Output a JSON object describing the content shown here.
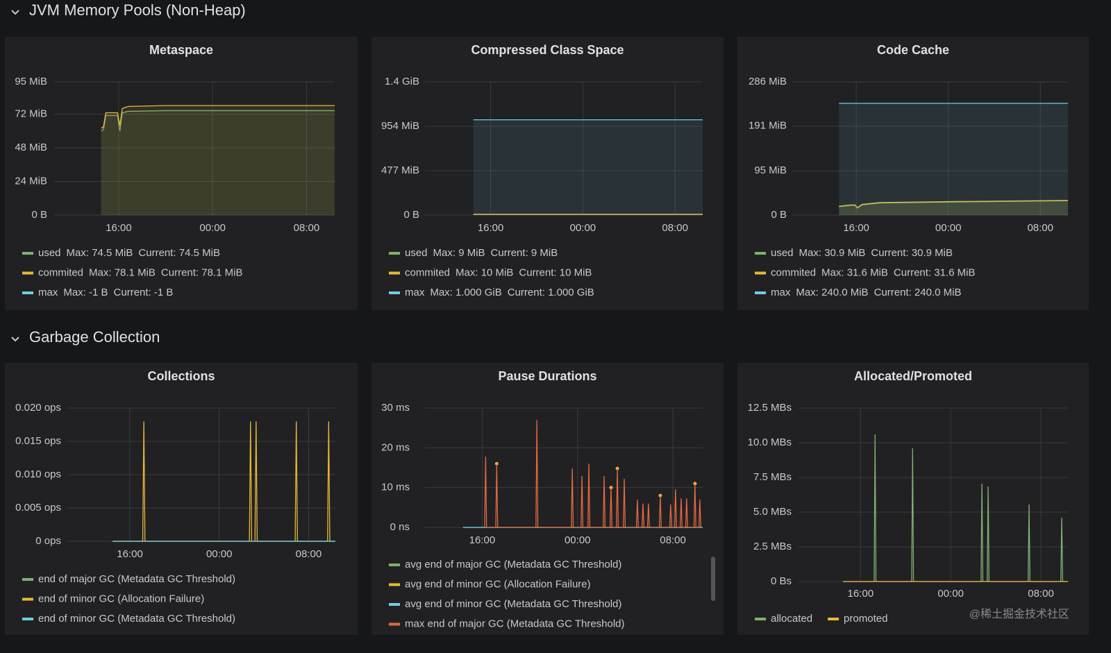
{
  "sections": [
    {
      "title": "JVM Memory Pools (Non-Heap)"
    },
    {
      "title": "Garbage Collection"
    }
  ],
  "watermark": "@稀土掘金技术社区",
  "chart_data": [
    {
      "type": "line",
      "title": "Metaspace",
      "fill": true,
      "grid": true,
      "xlim": [
        10.5,
        34.4
      ],
      "xticks": [
        {
          "value": 16,
          "label": "16:00"
        },
        {
          "value": 24,
          "label": "00:00"
        },
        {
          "value": 32,
          "label": "08:00"
        }
      ],
      "ylim": [
        0,
        95
      ],
      "yticks": [
        {
          "value": 0,
          "label": "0 B"
        },
        {
          "value": 24,
          "label": "24 MiB"
        },
        {
          "value": 48,
          "label": "48 MiB"
        },
        {
          "value": 72,
          "label": "72 MiB"
        },
        {
          "value": 95,
          "label": "95 MiB"
        }
      ],
      "x": [
        14.5,
        14.7,
        14.9,
        15.9,
        16.1,
        16.3,
        16.8,
        20,
        34.4
      ],
      "series": [
        {
          "name": "used",
          "color": "#7eb26d",
          "legend_max": "Max: 74.5 MiB",
          "legend_current": "Current: 74.5 MiB",
          "values": [
            60,
            61,
            71,
            71,
            60,
            73,
            74,
            74.5,
            74.5
          ]
        },
        {
          "name": "commited",
          "color": "#eab839",
          "legend_max": "Max: 78.1 MiB",
          "legend_current": "Current: 78.1 MiB",
          "values": [
            62,
            63,
            73,
            73,
            64,
            76,
            77.5,
            78.1,
            78.1
          ]
        },
        {
          "name": "max",
          "color": "#6ed0e0",
          "legend_max": "Max: -1 B",
          "legend_current": "Current: -1 B",
          "values": [
            null,
            null,
            null,
            null,
            null,
            null,
            null,
            null,
            null
          ]
        }
      ]
    },
    {
      "type": "line",
      "title": "Compressed Class Space",
      "fill": true,
      "grid": true,
      "xlim": [
        10.3,
        34.4
      ],
      "xticks": [
        {
          "value": 16,
          "label": "16:00"
        },
        {
          "value": 24,
          "label": "00:00"
        },
        {
          "value": 32,
          "label": "08:00"
        }
      ],
      "ylim": [
        0,
        1431
      ],
      "yticks": [
        {
          "value": 0,
          "label": "0 B"
        },
        {
          "value": 477,
          "label": "477 MiB"
        },
        {
          "value": 954,
          "label": "954 MiB"
        },
        {
          "value": 1431,
          "label": "1.4 GiB"
        }
      ],
      "x": [
        14.5,
        34.4
      ],
      "series": [
        {
          "name": "used",
          "color": "#7eb26d",
          "legend_max": "Max: 9 MiB",
          "legend_current": "Current: 9 MiB",
          "values": [
            9,
            9
          ]
        },
        {
          "name": "commited",
          "color": "#eab839",
          "legend_max": "Max: 10 MiB",
          "legend_current": "Current: 10 MiB",
          "values": [
            10,
            10
          ]
        },
        {
          "name": "max",
          "color": "#6ed0e0",
          "legend_max": "Max: 1.000 GiB",
          "legend_current": "Current: 1.000 GiB",
          "values": [
            1024,
            1024
          ]
        }
      ]
    },
    {
      "type": "line",
      "title": "Code Cache",
      "fill": true,
      "grid": true,
      "xlim": [
        10.44,
        34.4
      ],
      "xticks": [
        {
          "value": 16,
          "label": "16:00"
        },
        {
          "value": 24,
          "label": "00:00"
        },
        {
          "value": 32,
          "label": "08:00"
        }
      ],
      "ylim": [
        0,
        286
      ],
      "yticks": [
        {
          "value": 0,
          "label": "0 B"
        },
        {
          "value": 95,
          "label": "95 MiB"
        },
        {
          "value": 191,
          "label": "191 MiB"
        },
        {
          "value": 286,
          "label": "286 MiB"
        }
      ],
      "x": [
        14.5,
        15.5,
        15.9,
        16.1,
        16.5,
        18,
        24,
        34.4
      ],
      "series": [
        {
          "name": "used",
          "color": "#7eb26d",
          "legend_max": "Max: 30.9 MiB",
          "legend_current": "Current: 30.9 MiB",
          "values": [
            18,
            21,
            21,
            15,
            22,
            26,
            28,
            30.9
          ]
        },
        {
          "name": "commited",
          "color": "#eab839",
          "legend_max": "Max: 31.6 MiB",
          "legend_current": "Current: 31.6 MiB",
          "values": [
            19,
            22,
            22,
            16,
            23,
            27,
            29,
            31.6
          ]
        },
        {
          "name": "max",
          "color": "#6ed0e0",
          "legend_max": "Max: 240.0 MiB",
          "legend_current": "Current: 240.0 MiB",
          "values": [
            240,
            240,
            240,
            240,
            240,
            240,
            240,
            240
          ]
        }
      ]
    },
    {
      "type": "line",
      "title": "Collections",
      "fill": false,
      "grid": true,
      "xlim": [
        10.4,
        34.4
      ],
      "xticks": [
        {
          "value": 16,
          "label": "16:00"
        },
        {
          "value": 24,
          "label": "00:00"
        },
        {
          "value": 32,
          "label": "08:00"
        }
      ],
      "ylim": [
        0,
        0.02
      ],
      "yticks": [
        {
          "value": 0,
          "label": "0 ops"
        },
        {
          "value": 0.005,
          "label": "0.005 ops"
        },
        {
          "value": 0.01,
          "label": "0.010 ops"
        },
        {
          "value": 0.015,
          "label": "0.015 ops"
        },
        {
          "value": 0.02,
          "label": "0.020 ops"
        }
      ],
      "series": [
        {
          "name": "end of major GC (Metadata GC Threshold)",
          "color": "#7eb26d",
          "x": [
            14.45,
            34.4
          ],
          "values": [
            0,
            0
          ]
        },
        {
          "name": "end of minor GC (Allocation Failure)",
          "color": "#eab839",
          "x": [
            14.45,
            17.15,
            17.25,
            17.35,
            26.7,
            26.8,
            26.9,
            27.2,
            27.3,
            27.4,
            30.8,
            30.9,
            31.0,
            33.7,
            33.8,
            33.9,
            34.4
          ],
          "values": [
            0,
            0,
            0.018,
            0,
            0,
            0.018,
            0,
            0,
            0.018,
            0,
            0,
            0.018,
            0,
            0,
            0.018,
            0,
            0
          ]
        },
        {
          "name": "end of minor GC (Metadata GC Threshold)",
          "color": "#6ed0e0",
          "x": [
            14.45,
            34.4
          ],
          "values": [
            0,
            0
          ]
        }
      ]
    },
    {
      "type": "line",
      "title": "Pause Durations",
      "fill": false,
      "grid": true,
      "xlim": [
        11.2,
        34.5
      ],
      "xticks": [
        {
          "value": 16,
          "label": "16:00"
        },
        {
          "value": 24,
          "label": "00:00"
        },
        {
          "value": 32,
          "label": "08:00"
        }
      ],
      "ylim": [
        0,
        30
      ],
      "yticks": [
        {
          "value": 0,
          "label": "0 ns"
        },
        {
          "value": 10,
          "label": "10 ms"
        },
        {
          "value": 20,
          "label": "20 ms"
        },
        {
          "value": 30,
          "label": "30 ms"
        }
      ],
      "series": [
        {
          "name": "avg end of major GC (Metadata GC Threshold)",
          "color": "#7eb26d",
          "x": [
            14.4,
            34.5
          ],
          "values": [
            0,
            0
          ]
        },
        {
          "name": "avg end of minor GC (Allocation Failure)",
          "color": "#eab839",
          "style": "points",
          "x": [
            17.22,
            26.81,
            27.34,
            30.94,
            33.85
          ],
          "values": [
            16,
            10,
            14.8,
            8,
            11
          ]
        },
        {
          "name": "avg end of minor GC (Metadata GC Threshold)",
          "color": "#6ed0e0",
          "x": [
            14.4,
            34.5
          ],
          "values": [
            0,
            0
          ]
        },
        {
          "name": "max end of major GC (Metadata GC Threshold)",
          "color": "#e5693f",
          "x": [
            16.21,
            16.29,
            16.37,
            17.14,
            17.22,
            17.3,
            20.51,
            20.59,
            20.67,
            23.48,
            23.56,
            23.64,
            24.29,
            24.37,
            24.45,
            24.87,
            24.95,
            25.03,
            26.15,
            26.23,
            26.31,
            26.73,
            26.81,
            26.89,
            27.26,
            27.34,
            27.42,
            27.84,
            27.92,
            28.0,
            28.94,
            29.02,
            29.1,
            29.41,
            29.49,
            29.57,
            29.87,
            29.95,
            30.03,
            30.86,
            30.94,
            31.02,
            31.73,
            31.81,
            31.89,
            32.14,
            32.22,
            32.3,
            32.61,
            32.69,
            32.77,
            33.07,
            33.15,
            33.23,
            33.77,
            33.85,
            33.93,
            34.18,
            34.26,
            34.34
          ],
          "values": [
            0,
            17.8,
            0,
            0,
            16,
            0,
            0,
            27,
            0,
            0,
            14.8,
            0,
            0,
            12.9,
            0,
            0,
            16,
            0,
            0,
            12.9,
            0,
            0,
            10,
            0,
            0,
            14.8,
            0,
            0,
            12.2,
            0,
            0,
            7,
            0,
            0,
            6,
            0,
            0,
            6,
            0,
            0,
            8,
            0,
            0,
            5.8,
            0,
            0,
            9.6,
            0,
            0,
            7.3,
            0,
            0,
            7.3,
            0,
            0,
            11,
            0,
            0,
            7,
            0
          ]
        }
      ]
    },
    {
      "type": "line",
      "title": "Allocated/Promoted",
      "fill": false,
      "grid": true,
      "xlim": [
        10.5,
        34.4
      ],
      "xticks": [
        {
          "value": 16,
          "label": "16:00"
        },
        {
          "value": 24,
          "label": "00:00"
        },
        {
          "value": 32,
          "label": "08:00"
        }
      ],
      "ylim": [
        0,
        12.5
      ],
      "yticks": [
        {
          "value": 0,
          "label": "0 Bs"
        },
        {
          "value": 2.5,
          "label": "2.5 MBs"
        },
        {
          "value": 5,
          "label": "5.0 MBs"
        },
        {
          "value": 7.5,
          "label": "7.5 MBs"
        },
        {
          "value": 10,
          "label": "10.0 MBs"
        },
        {
          "value": 12.5,
          "label": "12.5 MBs"
        }
      ],
      "series": [
        {
          "name": "allocated",
          "color": "#7eb26d",
          "x": [
            14.46,
            17.21,
            17.29,
            17.37,
            20.54,
            20.62,
            20.7,
            26.69,
            26.77,
            26.85,
            27.24,
            27.32,
            27.4,
            30.87,
            30.95,
            31.03,
            33.77,
            33.85,
            33.93,
            34.4
          ],
          "values": [
            0,
            0,
            10.6,
            0,
            0,
            9.6,
            0,
            0,
            7.05,
            0,
            0,
            6.85,
            0,
            0,
            5.55,
            0,
            0,
            4.6,
            0,
            0
          ]
        },
        {
          "name": "promoted",
          "color": "#eab839",
          "x": [
            14.46,
            34.4
          ],
          "values": [
            0,
            0
          ]
        }
      ]
    }
  ]
}
